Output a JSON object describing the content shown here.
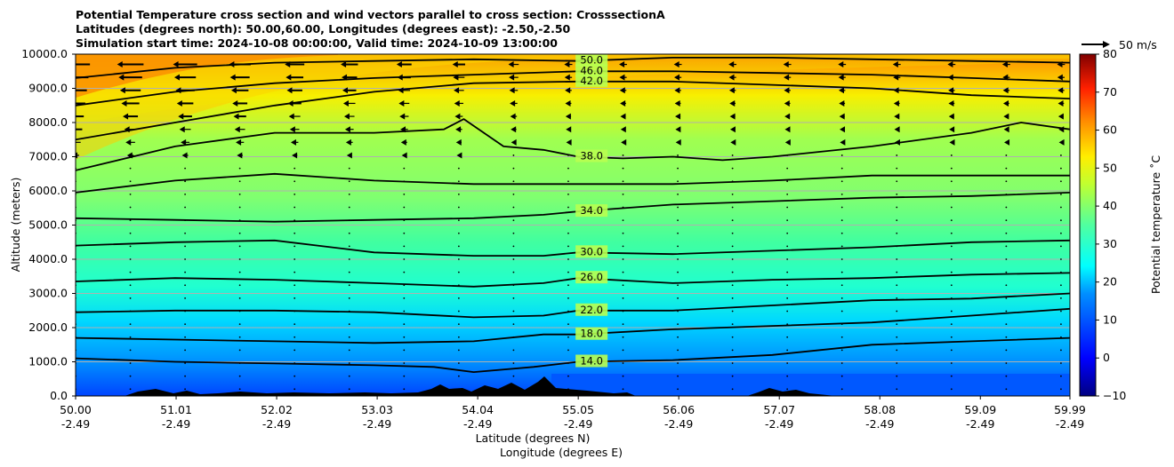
{
  "chart_data": {
    "type": "heatmap",
    "title_lines": [
      "Potential Temperature cross section and wind vectors parallel to cross section: CrosssectionA",
      "Latitudes (degrees north): 50.00,60.00, Longitudes (degrees east): -2.50,-2.50",
      "Simulation start time: 2024-10-08 00:00:00, Valid time: 2024-10-09 13:00:00"
    ],
    "xlabel": "Latitude (degrees N)",
    "xlabel2": "Longitude (degrees E)",
    "ylabel": "Altitude (meters)",
    "xlim": [
      50.0,
      59.99
    ],
    "ylim": [
      0,
      10000
    ],
    "x_ticks": [
      {
        "lat": "50.00",
        "lon": "-2.49",
        "value": 50.0
      },
      {
        "lat": "51.01",
        "lon": "-2.49",
        "value": 51.01
      },
      {
        "lat": "52.02",
        "lon": "-2.49",
        "value": 52.02
      },
      {
        "lat": "53.03",
        "lon": "-2.49",
        "value": 53.03
      },
      {
        "lat": "54.04",
        "lon": "-2.49",
        "value": 54.04
      },
      {
        "lat": "55.05",
        "lon": "-2.49",
        "value": 55.05
      },
      {
        "lat": "56.06",
        "lon": "-2.49",
        "value": 56.06
      },
      {
        "lat": "57.07",
        "lon": "-2.49",
        "value": 57.07
      },
      {
        "lat": "58.08",
        "lon": "-2.49",
        "value": 58.08
      },
      {
        "lat": "59.09",
        "lon": "-2.49",
        "value": 59.09
      },
      {
        "lat": "59.99",
        "lon": "-2.49",
        "value": 59.99
      }
    ],
    "y_ticks": [
      "0.0",
      "1000.0",
      "2000.0",
      "3000.0",
      "4000.0",
      "5000.0",
      "6000.0",
      "7000.0",
      "8000.0",
      "9000.0",
      "10000.0"
    ],
    "grid": "horizontal",
    "colorbar": {
      "label": "Potential temperature $^\\circ$C",
      "label_display": "Potential temperature ˚C",
      "min": -10,
      "max": 80,
      "ticks": [
        "−10",
        "0",
        "10",
        "20",
        "30",
        "40",
        "50",
        "60",
        "70",
        "80"
      ]
    },
    "wind_key": {
      "label": "50 m/s",
      "speed": 50
    },
    "contours": [
      {
        "level": 14,
        "label": "14.0",
        "points": [
          [
            50.0,
            1100
          ],
          [
            51.0,
            1000
          ],
          [
            52.0,
            950
          ],
          [
            53.0,
            900
          ],
          [
            53.6,
            850
          ],
          [
            54.0,
            700
          ],
          [
            54.6,
            850
          ],
          [
            55.05,
            1000
          ],
          [
            56.0,
            1050
          ],
          [
            57.0,
            1200
          ],
          [
            58.0,
            1500
          ],
          [
            59.0,
            1600
          ],
          [
            59.99,
            1700
          ]
        ]
      },
      {
        "level": 18,
        "label": "18.0",
        "points": [
          [
            50.0,
            1700
          ],
          [
            51.0,
            1650
          ],
          [
            52.0,
            1600
          ],
          [
            53.0,
            1550
          ],
          [
            54.0,
            1600
          ],
          [
            54.7,
            1800
          ],
          [
            55.05,
            1800
          ],
          [
            56.0,
            1950
          ],
          [
            57.0,
            2050
          ],
          [
            58.0,
            2150
          ],
          [
            59.0,
            2350
          ],
          [
            59.99,
            2550
          ]
        ]
      },
      {
        "level": 22,
        "label": "22.0",
        "points": [
          [
            50.0,
            2450
          ],
          [
            51.0,
            2500
          ],
          [
            52.0,
            2500
          ],
          [
            53.0,
            2450
          ],
          [
            54.0,
            2300
          ],
          [
            54.7,
            2350
          ],
          [
            55.05,
            2500
          ],
          [
            56.0,
            2500
          ],
          [
            57.0,
            2650
          ],
          [
            58.0,
            2800
          ],
          [
            59.0,
            2850
          ],
          [
            59.99,
            3000
          ]
        ]
      },
      {
        "level": 26,
        "label": "26.0",
        "points": [
          [
            50.0,
            3350
          ],
          [
            51.0,
            3450
          ],
          [
            52.0,
            3400
          ],
          [
            53.0,
            3300
          ],
          [
            54.0,
            3200
          ],
          [
            54.7,
            3300
          ],
          [
            55.05,
            3450
          ],
          [
            56.0,
            3300
          ],
          [
            57.0,
            3400
          ],
          [
            58.0,
            3450
          ],
          [
            59.0,
            3550
          ],
          [
            59.99,
            3600
          ]
        ]
      },
      {
        "level": 30,
        "label": "30.0",
        "points": [
          [
            50.0,
            4400
          ],
          [
            51.0,
            4500
          ],
          [
            52.0,
            4550
          ],
          [
            53.0,
            4200
          ],
          [
            54.0,
            4100
          ],
          [
            54.7,
            4100
          ],
          [
            55.05,
            4200
          ],
          [
            56.0,
            4150
          ],
          [
            57.0,
            4250
          ],
          [
            58.0,
            4350
          ],
          [
            59.0,
            4500
          ],
          [
            59.99,
            4550
          ]
        ]
      },
      {
        "level": 34,
        "label": "34.0",
        "points": [
          [
            50.0,
            5200
          ],
          [
            51.0,
            5150
          ],
          [
            52.0,
            5100
          ],
          [
            53.0,
            5150
          ],
          [
            54.0,
            5200
          ],
          [
            54.7,
            5300
          ],
          [
            55.05,
            5400
          ],
          [
            56.0,
            5600
          ],
          [
            57.0,
            5700
          ],
          [
            58.0,
            5800
          ],
          [
            59.0,
            5850
          ],
          [
            59.99,
            5950
          ]
        ]
      },
      {
        "level": 36,
        "label": "",
        "points": [
          [
            50.0,
            5950
          ],
          [
            51.0,
            6300
          ],
          [
            52.0,
            6500
          ],
          [
            53.0,
            6300
          ],
          [
            54.0,
            6200
          ],
          [
            54.7,
            6200
          ],
          [
            55.05,
            6200
          ],
          [
            56.0,
            6200
          ],
          [
            57.0,
            6300
          ],
          [
            58.0,
            6450
          ],
          [
            59.0,
            6450
          ],
          [
            59.99,
            6450
          ]
        ]
      },
      {
        "level": 38,
        "label": "38.0",
        "points": [
          [
            50.0,
            6600
          ],
          [
            51.0,
            7300
          ],
          [
            52.0,
            7700
          ],
          [
            53.0,
            7700
          ],
          [
            53.7,
            7800
          ],
          [
            53.9,
            8100
          ],
          [
            54.3,
            7300
          ],
          [
            54.7,
            7200
          ],
          [
            55.05,
            7000
          ],
          [
            55.5,
            6950
          ],
          [
            56.0,
            7000
          ],
          [
            56.5,
            6900
          ],
          [
            57.0,
            7000
          ],
          [
            58.0,
            7300
          ],
          [
            59.0,
            7700
          ],
          [
            59.5,
            8000
          ],
          [
            59.99,
            7800
          ]
        ]
      },
      {
        "level": 42,
        "label": "42.0",
        "points": [
          [
            50.0,
            7500
          ],
          [
            51.0,
            8000
          ],
          [
            52.0,
            8500
          ],
          [
            53.0,
            8900
          ],
          [
            54.0,
            9150
          ],
          [
            55.05,
            9200
          ],
          [
            56.0,
            9200
          ],
          [
            57.0,
            9100
          ],
          [
            58.0,
            9000
          ],
          [
            59.0,
            8800
          ],
          [
            59.99,
            8700
          ]
        ]
      },
      {
        "level": 46,
        "label": "46.0",
        "points": [
          [
            50.0,
            8500
          ],
          [
            51.0,
            8900
          ],
          [
            52.0,
            9150
          ],
          [
            53.0,
            9300
          ],
          [
            54.0,
            9400
          ],
          [
            55.05,
            9500
          ],
          [
            56.0,
            9500
          ],
          [
            57.0,
            9450
          ],
          [
            58.0,
            9400
          ],
          [
            59.0,
            9300
          ],
          [
            59.99,
            9200
          ]
        ]
      },
      {
        "level": 50,
        "label": "50.0",
        "points": [
          [
            50.0,
            9300
          ],
          [
            51.0,
            9600
          ],
          [
            52.0,
            9750
          ],
          [
            53.0,
            9800
          ],
          [
            54.0,
            9850
          ],
          [
            55.05,
            9800
          ],
          [
            56.0,
            9900
          ],
          [
            57.0,
            9900
          ],
          [
            58.0,
            9850
          ],
          [
            59.0,
            9800
          ],
          [
            59.99,
            9750
          ]
        ]
      }
    ]
  }
}
